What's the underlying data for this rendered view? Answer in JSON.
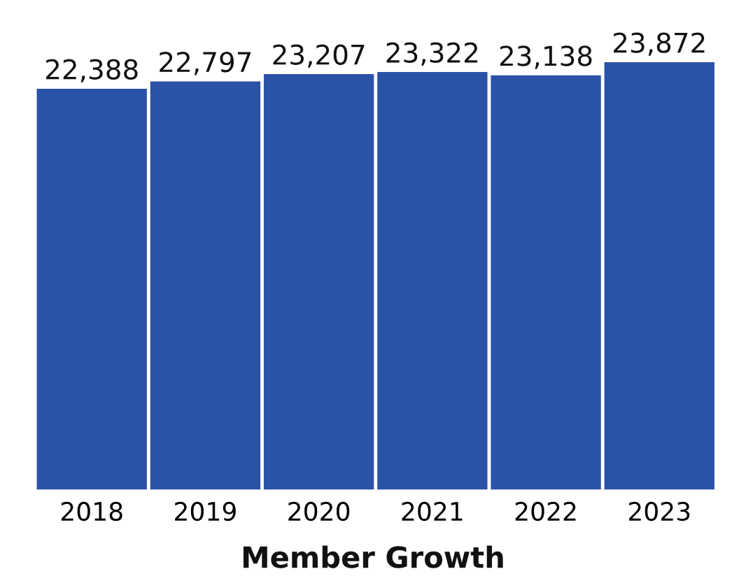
{
  "chart_data": {
    "type": "bar",
    "title": "Member Growth",
    "categories": [
      "2018",
      "2019",
      "2020",
      "2021",
      "2022",
      "2023"
    ],
    "values": [
      22388,
      22797,
      23207,
      23322,
      23138,
      23872
    ],
    "value_labels": [
      "22,388",
      "22,797",
      "23,207",
      "23,322",
      "23,138",
      "23,872"
    ],
    "color": "#2a52a6",
    "grid": false,
    "legend": false
  }
}
